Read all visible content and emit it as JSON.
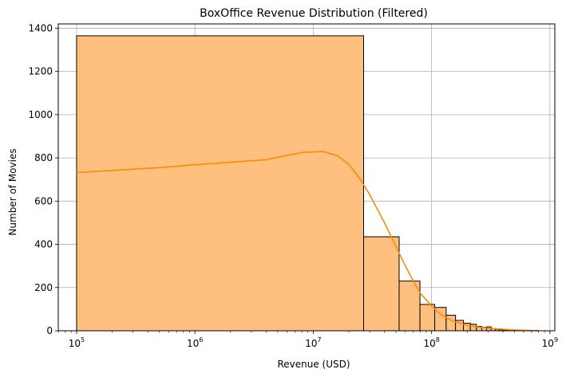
{
  "chart_data": {
    "type": "bar",
    "title": "BoxOffice Revenue Distribution (Filtered)",
    "xlabel": "Revenue (USD)",
    "ylabel": "Number of Movies",
    "x_scale": "log",
    "xlim": [
      70000,
      1100000000
    ],
    "ylim": [
      0,
      1420
    ],
    "grid": true,
    "x_ticks": [
      100000,
      1000000,
      10000000,
      100000000,
      1000000000
    ],
    "x_tick_labels": [
      {
        "base": "10",
        "exp": "5"
      },
      {
        "base": "10",
        "exp": "6"
      },
      {
        "base": "10",
        "exp": "7"
      },
      {
        "base": "10",
        "exp": "8"
      },
      {
        "base": "10",
        "exp": "9"
      }
    ],
    "y_ticks": [
      0,
      200,
      400,
      600,
      800,
      1000,
      1200,
      1400
    ],
    "histogram": {
      "bin_width": 26540000,
      "bins": [
        {
          "x0": 100000,
          "x1": 26640000,
          "count": 1365
        },
        {
          "x0": 26640000,
          "x1": 53180000,
          "count": 435
        },
        {
          "x0": 53180000,
          "x1": 79720000,
          "count": 230
        },
        {
          "x0": 79720000,
          "x1": 106260000,
          "count": 122
        },
        {
          "x0": 106260000,
          "x1": 132800000,
          "count": 108
        },
        {
          "x0": 132800000,
          "x1": 159340000,
          "count": 72
        },
        {
          "x0": 159340000,
          "x1": 185880000,
          "count": 48
        },
        {
          "x0": 185880000,
          "x1": 212420000,
          "count": 35
        },
        {
          "x0": 212420000,
          "x1": 238960000,
          "count": 30
        },
        {
          "x0": 238960000,
          "x1": 265500000,
          "count": 20
        },
        {
          "x0": 265500000,
          "x1": 292040000,
          "count": 16
        },
        {
          "x0": 292040000,
          "x1": 318580000,
          "count": 18
        },
        {
          "x0": 318580000,
          "x1": 345120000,
          "count": 10
        },
        {
          "x0": 345120000,
          "x1": 371660000,
          "count": 7
        },
        {
          "x0": 371660000,
          "x1": 398200000,
          "count": 5
        },
        {
          "x0": 398200000,
          "x1": 424740000,
          "count": 4
        },
        {
          "x0": 424740000,
          "x1": 451280000,
          "count": 3
        },
        {
          "x0": 451280000,
          "x1": 477820000,
          "count": 3
        },
        {
          "x0": 477820000,
          "x1": 504360000,
          "count": 2
        },
        {
          "x0": 504360000,
          "x1": 530900000,
          "count": 2
        },
        {
          "x0": 530900000,
          "x1": 557440000,
          "count": 1
        },
        {
          "x0": 557440000,
          "x1": 583980000,
          "count": 1
        },
        {
          "x0": 583980000,
          "x1": 610520000,
          "count": 1
        },
        {
          "x0": 610520000,
          "x1": 637060000,
          "count": 1
        },
        {
          "x0": 637060000,
          "x1": 663600000,
          "count": 1
        },
        {
          "x0": 663600000,
          "x1": 690140000,
          "count": 0
        },
        {
          "x0": 690140000,
          "x1": 716680000,
          "count": 1
        },
        {
          "x0": 716680000,
          "x1": 743220000,
          "count": 0
        },
        {
          "x0": 743220000,
          "x1": 769760000,
          "count": 0
        },
        {
          "x0": 769760000,
          "x1": 796300000,
          "count": 1
        }
      ]
    },
    "kde": {
      "x": [
        100000,
        500000,
        1000000,
        4000000,
        8000000,
        12000000,
        16000000,
        20000000,
        25000000,
        30000000,
        40000000,
        50000000,
        60000000,
        70000000,
        80000000,
        100000000,
        120000000,
        150000000,
        200000000,
        250000000,
        300000000,
        400000000,
        500000000,
        600000000,
        700000000,
        800000000
      ],
      "y": [
        732,
        755,
        768,
        792,
        825,
        830,
        810,
        770,
        700,
        630,
        500,
        390,
        300,
        230,
        175,
        115,
        75,
        45,
        25,
        17,
        12,
        7,
        4,
        2,
        1,
        0
      ]
    },
    "colors": {
      "bar_fill": "#FFC07F",
      "bar_edge": "#000000",
      "kde_line": "#FF8C00",
      "grid": "#B0B0B0"
    }
  }
}
